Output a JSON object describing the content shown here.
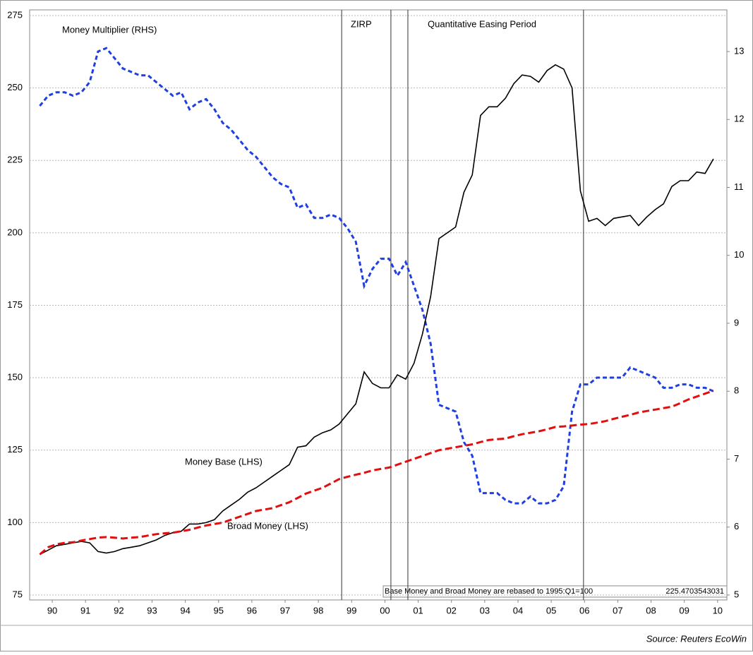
{
  "chart_data": {
    "type": "line",
    "source": "Source: Reuters EcoWin",
    "annotations": [
      "ZIRP",
      "Quantitative Easing Period"
    ],
    "note": "Base Money and Broad Money are rebased to 1995:Q1=100",
    "note_value": "225.4703543031",
    "vlines": [
      1999.2,
      2000.68,
      2001.19,
      2006.47
    ],
    "xlim": [
      1989.82,
      2010.78
    ],
    "xticks": [
      {
        "value": 1990.5,
        "label": "90"
      },
      {
        "value": 1991.5,
        "label": "91"
      },
      {
        "value": 1992.5,
        "label": "92"
      },
      {
        "value": 1993.5,
        "label": "93"
      },
      {
        "value": 1994.5,
        "label": "94"
      },
      {
        "value": 1995.5,
        "label": "95"
      },
      {
        "value": 1996.5,
        "label": "96"
      },
      {
        "value": 1997.5,
        "label": "97"
      },
      {
        "value": 1998.5,
        "label": "98"
      },
      {
        "value": 1999.5,
        "label": "99"
      },
      {
        "value": 2000.5,
        "label": "00"
      },
      {
        "value": 2001.5,
        "label": "01"
      },
      {
        "value": 2002.5,
        "label": "02"
      },
      {
        "value": 2003.5,
        "label": "03"
      },
      {
        "value": 2004.5,
        "label": "04"
      },
      {
        "value": 2005.5,
        "label": "05"
      },
      {
        "value": 2006.5,
        "label": "06"
      },
      {
        "value": 2007.5,
        "label": "07"
      },
      {
        "value": 2008.5,
        "label": "08"
      },
      {
        "value": 2009.5,
        "label": "09"
      },
      {
        "value": 2010.5,
        "label": "10"
      }
    ],
    "ylim": [
      75,
      275
    ],
    "yticks": [
      75,
      100,
      125,
      150,
      175,
      200,
      225,
      250,
      275
    ],
    "y2lim": [
      5,
      13.53
    ],
    "y2ticks": [
      5,
      6,
      7,
      8,
      9,
      10,
      11,
      12,
      13
    ],
    "grid": true,
    "x": [
      1990.125,
      1990.375,
      1990.625,
      1990.875,
      1991.125,
      1991.375,
      1991.625,
      1991.875,
      1992.125,
      1992.375,
      1992.625,
      1992.875,
      1993.125,
      1993.375,
      1993.625,
      1993.875,
      1994.125,
      1994.375,
      1994.625,
      1994.875,
      1995.125,
      1995.375,
      1995.625,
      1995.875,
      1996.125,
      1996.375,
      1996.625,
      1996.875,
      1997.125,
      1997.375,
      1997.625,
      1997.875,
      1998.125,
      1998.375,
      1998.625,
      1998.875,
      1999.125,
      1999.375,
      1999.625,
      1999.875,
      2000.125,
      2000.375,
      2000.625,
      2000.875,
      2001.125,
      2001.375,
      2001.625,
      2001.875,
      2002.125,
      2002.375,
      2002.625,
      2002.875,
      2003.125,
      2003.375,
      2003.625,
      2003.875,
      2004.125,
      2004.375,
      2004.625,
      2004.875,
      2005.125,
      2005.375,
      2005.625,
      2005.875,
      2006.125,
      2006.375,
      2006.625,
      2006.875,
      2007.125,
      2007.375,
      2007.625,
      2007.875,
      2008.125,
      2008.375,
      2008.625,
      2008.875,
      2009.125,
      2009.375,
      2009.625,
      2009.875,
      2010.125,
      2010.375
    ],
    "series": [
      {
        "name": "Money Multiplier (RHS)",
        "color": "#1f3fe0",
        "dash": "6 4",
        "axis": "y2",
        "values": [
          12.2,
          12.35,
          12.4,
          12.4,
          12.35,
          12.4,
          12.55,
          13,
          13.05,
          12.9,
          12.75,
          12.7,
          12.65,
          12.65,
          12.55,
          12.45,
          12.35,
          12.4,
          12.15,
          12.25,
          12.3,
          12.15,
          11.95,
          11.85,
          11.7,
          11.55,
          11.45,
          11.3,
          11.15,
          11.05,
          11.0,
          10.7,
          10.75,
          10.55,
          10.55,
          10.6,
          10.55,
          10.4,
          10.2,
          9.55,
          9.8,
          9.95,
          9.95,
          9.7,
          9.9,
          9.55,
          9.2,
          8.7,
          7.8,
          7.75,
          7.7,
          7.25,
          7.05,
          6.5,
          6.5,
          6.5,
          6.4,
          6.35,
          6.35,
          6.45,
          6.35,
          6.35,
          6.4,
          6.6,
          7.7,
          8.1,
          8.1,
          8.2,
          8.2,
          8.2,
          8.2,
          8.35,
          8.3,
          8.25,
          8.2,
          8.05,
          8.05,
          8.1,
          8.1,
          8.05,
          8.05,
          8.0
        ]
      },
      {
        "name": "Money Base (LHS)",
        "color": "#000000",
        "dash": "",
        "values": [
          89,
          90.5,
          92,
          92.5,
          93,
          93.5,
          93,
          90,
          89.5,
          90,
          91,
          91.5,
          92,
          93,
          94,
          95.5,
          96.5,
          97,
          99.5,
          99.5,
          100,
          101,
          104,
          106,
          108,
          110.5,
          112,
          114,
          116,
          118,
          120,
          126,
          126.5,
          129.5,
          131,
          132,
          134,
          137.5,
          141,
          152,
          148,
          146.5,
          146.5,
          151,
          149.5,
          155,
          165,
          178,
          198,
          200,
          202,
          214,
          220,
          240.5,
          243.5,
          243.5,
          246.5,
          251.5,
          254.5,
          254,
          252,
          256,
          258,
          256.5,
          250,
          214.5,
          204,
          205,
          202.5,
          205,
          205.5,
          206,
          202.5,
          205.5,
          208,
          210,
          216,
          218,
          218,
          221,
          220.5,
          225.5
        ]
      },
      {
        "name": "Broad Money (LHS)",
        "color": "#e01010",
        "dash": "10 5",
        "values": [
          89,
          91.5,
          92.5,
          93,
          93.2,
          93.8,
          94.3,
          94.8,
          95,
          94.8,
          94.5,
          94.8,
          95,
          95.5,
          96,
          96.3,
          96.5,
          97,
          97.5,
          98.3,
          99,
          99.5,
          100,
          101,
          102,
          103,
          104,
          104.5,
          105,
          106,
          107,
          108.5,
          110,
          111,
          112,
          113.5,
          115,
          115.8,
          116.5,
          117.2,
          118,
          118.5,
          119,
          120,
          121,
          122,
          123,
          124,
          125,
          125.5,
          126,
          126.5,
          127,
          127.8,
          128.5,
          128.8,
          129,
          129.8,
          130.5,
          131,
          131.5,
          132.2,
          133,
          133.2,
          133.5,
          133.8,
          134,
          134.5,
          135,
          135.8,
          136.5,
          137.2,
          138,
          138.5,
          139,
          139.5,
          140,
          141.2,
          142.5,
          143.5,
          144.5,
          145.5
        ]
      }
    ]
  }
}
